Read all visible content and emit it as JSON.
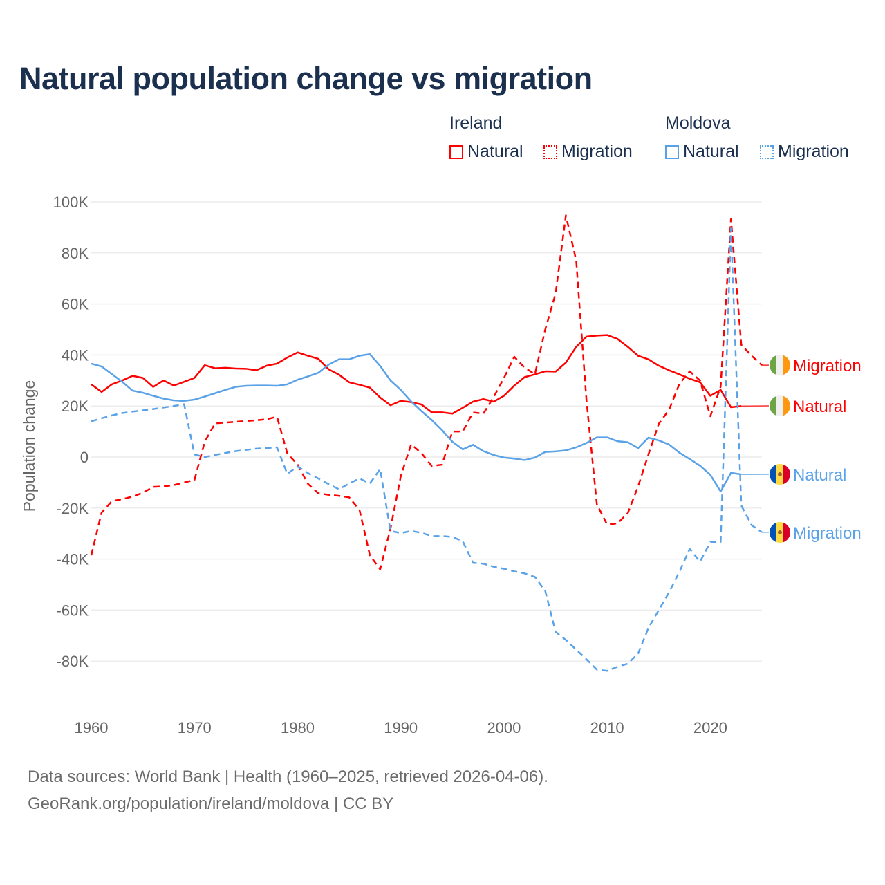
{
  "title": "Natural population change vs migration",
  "legend": {
    "groups": [
      {
        "name": "Ireland",
        "items": [
          "Natural",
          "Migration"
        ]
      },
      {
        "name": "Moldova",
        "items": [
          "Natural",
          "Migration"
        ]
      }
    ]
  },
  "footer": {
    "line1": "Data sources: World Bank | Health (1960–2025, retrieved 2026-04-06).",
    "line2": "GeoRank.org/population/ireland/moldova | CC BY"
  },
  "colors": {
    "ireland": "#ff0000",
    "moldova": "#5aa2e8",
    "title": "#1b2f4f"
  },
  "chart_data": {
    "type": "line",
    "title": "Natural population change vs migration",
    "xlabel": "",
    "ylabel": "Population change",
    "xlim": [
      1960,
      2025
    ],
    "ylim": [
      -100000,
      100000
    ],
    "x_ticks": [
      1960,
      1970,
      1980,
      1990,
      2000,
      2010,
      2020
    ],
    "x_tick_labels": [
      "1960",
      "1970",
      "1980",
      "1990",
      "2000",
      "2010",
      "2020"
    ],
    "y_ticks": [
      100000,
      80000,
      60000,
      40000,
      20000,
      0,
      -20000,
      -40000,
      -60000,
      -80000
    ],
    "y_tick_labels": [
      "100K",
      "80K",
      "60K",
      "40K",
      "20K",
      "0",
      "-20K",
      "-40K",
      "-60K",
      "-80K"
    ],
    "grid": true,
    "legend_position": "top-right",
    "x_start": 1960,
    "series": [
      {
        "name": "Ireland Natural",
        "end_label": "Natural",
        "country": "ireland",
        "dash": false,
        "values": [
          28500,
          25500,
          28500,
          30000,
          31800,
          31000,
          27500,
          30000,
          28000,
          29500,
          31000,
          36000,
          34800,
          35000,
          34700,
          34600,
          34000,
          35800,
          36600,
          39000,
          41000,
          39700,
          38500,
          34400,
          32300,
          29300,
          28300,
          27200,
          23300,
          20300,
          22000,
          21500,
          20600,
          17500,
          17500,
          17000,
          19300,
          21700,
          22700,
          21700,
          24000,
          28000,
          31300,
          32400,
          33600,
          33500,
          37000,
          43200,
          47200,
          47600,
          47800,
          46300,
          43200,
          39700,
          38300,
          35800,
          34000,
          32400,
          30700,
          29300,
          24000,
          26300,
          19500,
          20000
        ]
      },
      {
        "name": "Ireland Migration",
        "end_label": "Migration",
        "country": "ireland",
        "dash": true,
        "values": [
          -38500,
          -21800,
          -17300,
          -16500,
          -15500,
          -14000,
          -11700,
          -11500,
          -11000,
          -10000,
          -9000,
          6000,
          13200,
          13500,
          13800,
          14100,
          14400,
          14800,
          15800,
          1400,
          -3000,
          -10500,
          -14200,
          -14800,
          -15200,
          -15800,
          -20800,
          -38500,
          -44000,
          -28000,
          -7500,
          5000,
          1500,
          -3500,
          -3000,
          10000,
          10000,
          17500,
          17000,
          23500,
          31000,
          39300,
          35000,
          32500,
          50000,
          64000,
          94700,
          77000,
          22000,
          -18500,
          -26500,
          -26000,
          -22000,
          -11500,
          1000,
          13000,
          18500,
          28700,
          33600,
          30000,
          16000,
          27600,
          93300,
          44000,
          39700,
          36000
        ]
      },
      {
        "name": "Moldova Natural",
        "end_label": "Natural",
        "country": "moldova",
        "dash": false,
        "values": [
          36600,
          35500,
          32500,
          29500,
          26000,
          25200,
          24000,
          22900,
          22200,
          22000,
          22500,
          23700,
          25000,
          26300,
          27500,
          27900,
          28000,
          28000,
          27900,
          28500,
          30300,
          31600,
          33000,
          36200,
          38300,
          38300,
          39700,
          40300,
          35700,
          30000,
          26300,
          21800,
          18000,
          14500,
          10500,
          6000,
          3000,
          4800,
          2300,
          800,
          -200,
          -600,
          -1200,
          -200,
          2000,
          2200,
          2600,
          3800,
          5500,
          7700,
          7700,
          6200,
          5800,
          3500,
          7600,
          6500,
          4900,
          1700,
          -800,
          -3400,
          -7000,
          -13500,
          -6200,
          -6800
        ]
      },
      {
        "name": "Moldova Migration",
        "end_label": "Migration",
        "country": "moldova",
        "dash": true,
        "values": [
          14000,
          15200,
          16300,
          17200,
          17800,
          18300,
          18800,
          19400,
          20000,
          20700,
          1000,
          0,
          800,
          1600,
          2300,
          2800,
          3300,
          3500,
          3800,
          -6600,
          -3700,
          -6300,
          -8400,
          -10600,
          -12600,
          -10400,
          -8400,
          -10400,
          -4700,
          -29000,
          -29800,
          -29000,
          -29700,
          -31000,
          -31000,
          -31300,
          -33000,
          -41500,
          -41800,
          -43000,
          -43800,
          -44800,
          -45600,
          -47000,
          -52500,
          -68500,
          -71700,
          -75500,
          -79300,
          -83300,
          -83800,
          -82200,
          -81000,
          -77000,
          -67000,
          -60000,
          -53000,
          -45000,
          -36000,
          -41000,
          -33300,
          -33300,
          89600,
          -19000,
          -26700,
          -29500
        ]
      }
    ]
  }
}
